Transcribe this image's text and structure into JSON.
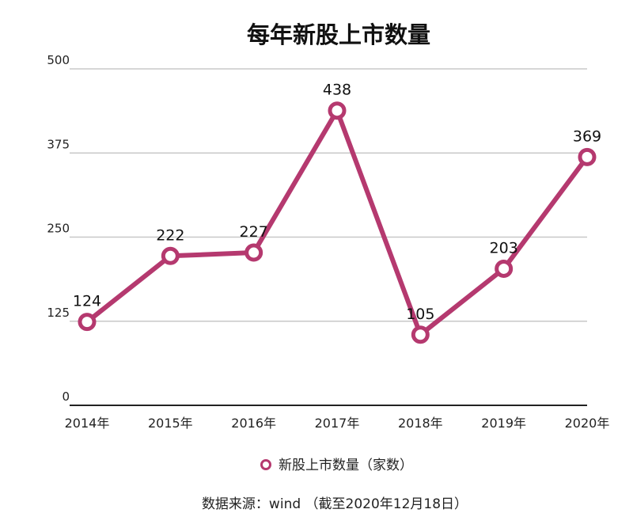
{
  "chart_data": {
    "type": "line",
    "title": "每年新股上市数量",
    "categories": [
      "2014年",
      "2015年",
      "2016年",
      "2017年",
      "2018年",
      "2019年",
      "2020年"
    ],
    "series": [
      {
        "name": "新股上市数量（家数）",
        "values": [
          124,
          222,
          227,
          438,
          105,
          203,
          369
        ],
        "color": "#b5396f"
      }
    ],
    "ylim": [
      0,
      500
    ],
    "yticks": [
      0,
      125,
      250,
      375,
      500
    ],
    "grid": true,
    "legend": "bottom",
    "data_labels": true
  },
  "source_note": "数据来源：wind （截至2020年12月18日）"
}
